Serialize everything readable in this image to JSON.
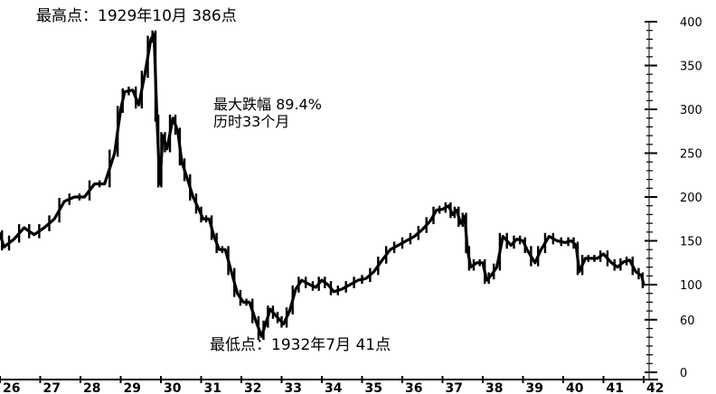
{
  "annotations": {
    "high": "最高点：1929年10月 386点",
    "drop_line1": "最大跌幅 89.4%",
    "drop_line2": "历时33个月",
    "low": "最低点：1932年7月 41点"
  },
  "chart_data": {
    "type": "line",
    "title": "",
    "xlabel": "",
    "ylabel": "",
    "x_range": [
      1926,
      1942
    ],
    "y_range": [
      0,
      400
    ],
    "y_ticks": [
      0,
      60,
      100,
      150,
      200,
      250,
      300,
      350,
      400
    ],
    "x_tick_labels": [
      {
        "year": 1926,
        "label": "26"
      },
      {
        "year": 1927,
        "label": "27"
      },
      {
        "year": 1928,
        "label": "28"
      },
      {
        "year": 1929,
        "label": "29"
      },
      {
        "year": 1930,
        "label": "30"
      },
      {
        "year": 1931,
        "label": "31"
      },
      {
        "year": 1932,
        "label": "32"
      },
      {
        "year": 1933,
        "label": "33"
      },
      {
        "year": 1934,
        "label": "34"
      },
      {
        "year": 1935,
        "label": "35"
      },
      {
        "year": 1936,
        "label": "36"
      },
      {
        "year": 1937,
        "label": "37"
      },
      {
        "year": 1938,
        "label": "38"
      },
      {
        "year": 1939,
        "label": "39"
      },
      {
        "year": 1940,
        "label": "40"
      },
      {
        "year": 1941,
        "label": "41"
      },
      {
        "year": 1942,
        "label": "42"
      }
    ],
    "grid": false,
    "line_color": "#000000",
    "series": [
      {
        "points": [
          [
            1926.0,
            158
          ],
          [
            1926.1,
            143
          ],
          [
            1926.35,
            152
          ],
          [
            1926.6,
            165
          ],
          [
            1926.85,
            157
          ],
          [
            1927.1,
            165
          ],
          [
            1927.35,
            175
          ],
          [
            1927.6,
            195
          ],
          [
            1927.85,
            200
          ],
          [
            1928.1,
            200
          ],
          [
            1928.35,
            215
          ],
          [
            1928.6,
            215
          ],
          [
            1928.85,
            250
          ],
          [
            1929.0,
            300
          ],
          [
            1929.1,
            320
          ],
          [
            1929.3,
            322
          ],
          [
            1929.45,
            305
          ],
          [
            1929.6,
            340
          ],
          [
            1929.75,
            380
          ],
          [
            1929.83,
            386
          ],
          [
            1929.9,
            290
          ],
          [
            1929.97,
            215
          ],
          [
            1930.05,
            270
          ],
          [
            1930.15,
            255
          ],
          [
            1930.3,
            290
          ],
          [
            1930.42,
            275
          ],
          [
            1930.52,
            240
          ],
          [
            1930.65,
            222
          ],
          [
            1930.8,
            200
          ],
          [
            1930.95,
            185
          ],
          [
            1931.05,
            175
          ],
          [
            1931.2,
            175
          ],
          [
            1931.32,
            155
          ],
          [
            1931.45,
            140
          ],
          [
            1931.6,
            140
          ],
          [
            1931.75,
            115
          ],
          [
            1931.9,
            90
          ],
          [
            1932.05,
            80
          ],
          [
            1932.2,
            80
          ],
          [
            1932.35,
            60
          ],
          [
            1932.5,
            41
          ],
          [
            1932.6,
            55
          ],
          [
            1932.72,
            72
          ],
          [
            1932.85,
            65
          ],
          [
            1932.95,
            60
          ],
          [
            1933.05,
            55
          ],
          [
            1933.2,
            70
          ],
          [
            1933.35,
            95
          ],
          [
            1933.5,
            105
          ],
          [
            1933.7,
            100
          ],
          [
            1933.85,
            97
          ],
          [
            1934.0,
            105
          ],
          [
            1934.15,
            100
          ],
          [
            1934.3,
            92
          ],
          [
            1934.5,
            95
          ],
          [
            1934.7,
            100
          ],
          [
            1934.9,
            105
          ],
          [
            1935.1,
            107
          ],
          [
            1935.3,
            115
          ],
          [
            1935.5,
            128
          ],
          [
            1935.7,
            140
          ],
          [
            1935.9,
            145
          ],
          [
            1936.1,
            150
          ],
          [
            1936.3,
            155
          ],
          [
            1936.5,
            163
          ],
          [
            1936.7,
            173
          ],
          [
            1936.85,
            185
          ],
          [
            1937.0,
            186
          ],
          [
            1937.15,
            190
          ],
          [
            1937.25,
            180
          ],
          [
            1937.35,
            185
          ],
          [
            1937.45,
            170
          ],
          [
            1937.55,
            178
          ],
          [
            1937.62,
            140
          ],
          [
            1937.7,
            120
          ],
          [
            1937.85,
            125
          ],
          [
            1938.0,
            125
          ],
          [
            1938.1,
            105
          ],
          [
            1938.2,
            110
          ],
          [
            1938.35,
            120
          ],
          [
            1938.5,
            155
          ],
          [
            1938.7,
            145
          ],
          [
            1938.85,
            152
          ],
          [
            1939.0,
            150
          ],
          [
            1939.1,
            140
          ],
          [
            1939.3,
            125
          ],
          [
            1939.45,
            140
          ],
          [
            1939.65,
            155
          ],
          [
            1939.85,
            150
          ],
          [
            1940.05,
            148
          ],
          [
            1940.2,
            150
          ],
          [
            1940.32,
            145
          ],
          [
            1940.4,
            115
          ],
          [
            1940.55,
            130
          ],
          [
            1940.7,
            130
          ],
          [
            1940.85,
            130
          ],
          [
            1941.0,
            135
          ],
          [
            1941.2,
            125
          ],
          [
            1941.35,
            120
          ],
          [
            1941.5,
            126
          ],
          [
            1941.65,
            128
          ],
          [
            1941.8,
            115
          ],
          [
            1941.95,
            110
          ],
          [
            1942.0,
            100
          ]
        ]
      }
    ]
  }
}
